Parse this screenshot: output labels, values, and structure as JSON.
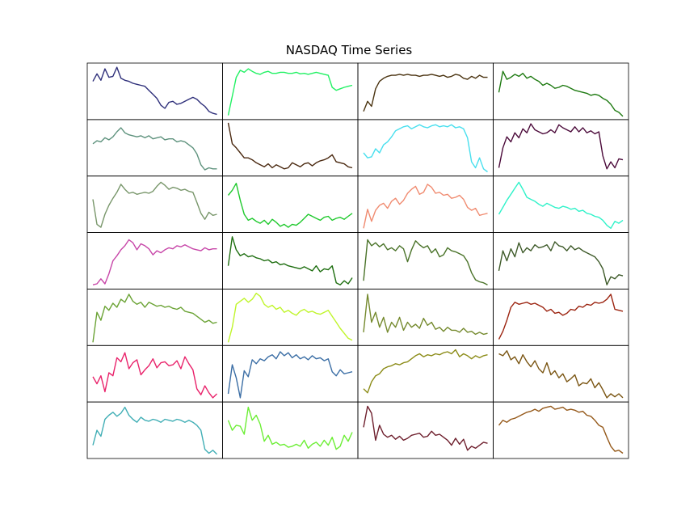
{
  "figure": {
    "title": "NASDAQ Time Series"
  },
  "chart_data": {
    "type": "line",
    "layout": "7x4 grid of small multiples, no axes ticks or labels",
    "grid": false,
    "panels": [
      {
        "color": "#2e2f7a",
        "values": [
          0.7,
          0.85,
          0.72,
          0.95,
          0.78,
          0.8,
          0.98,
          0.76,
          0.72,
          0.7,
          0.66,
          0.64,
          0.62,
          0.6,
          0.52,
          0.44,
          0.36,
          0.22,
          0.16,
          0.28,
          0.3,
          0.24,
          0.26,
          0.3,
          0.34,
          0.38,
          0.34,
          0.26,
          0.2,
          0.1,
          0.06,
          0.04
        ]
      },
      {
        "color": "#21f163",
        "values": [
          0.02,
          0.4,
          0.78,
          0.92,
          0.88,
          0.95,
          0.9,
          0.86,
          0.84,
          0.88,
          0.9,
          0.86,
          0.86,
          0.88,
          0.88,
          0.86,
          0.86,
          0.88,
          0.85,
          0.86,
          0.84,
          0.86,
          0.88,
          0.86,
          0.84,
          0.82,
          0.58,
          0.52,
          0.55,
          0.58,
          0.6,
          0.62
        ]
      },
      {
        "color": "#4a3310",
        "values": [
          0.1,
          0.3,
          0.2,
          0.55,
          0.7,
          0.76,
          0.8,
          0.82,
          0.82,
          0.84,
          0.82,
          0.84,
          0.82,
          0.82,
          0.8,
          0.82,
          0.82,
          0.84,
          0.82,
          0.8,
          0.82,
          0.78,
          0.8,
          0.84,
          0.82,
          0.76,
          0.74,
          0.8,
          0.76,
          0.82,
          0.78,
          0.78
        ]
      },
      {
        "color": "#1e7a11",
        "values": [
          0.48,
          0.9,
          0.74,
          0.78,
          0.84,
          0.8,
          0.86,
          0.76,
          0.8,
          0.74,
          0.7,
          0.62,
          0.66,
          0.62,
          0.56,
          0.58,
          0.62,
          0.6,
          0.56,
          0.52,
          0.5,
          0.48,
          0.46,
          0.42,
          0.44,
          0.42,
          0.36,
          0.32,
          0.24,
          0.12,
          0.08,
          0.0
        ]
      },
      {
        "color": "#5e927d",
        "values": [
          0.58,
          0.64,
          0.62,
          0.7,
          0.66,
          0.72,
          0.82,
          0.9,
          0.8,
          0.76,
          0.74,
          0.72,
          0.74,
          0.7,
          0.74,
          0.68,
          0.7,
          0.72,
          0.66,
          0.68,
          0.68,
          0.62,
          0.64,
          0.62,
          0.56,
          0.5,
          0.38,
          0.16,
          0.06,
          0.1,
          0.08,
          0.08
        ]
      },
      {
        "color": "#4a2910",
        "values": [
          1.0,
          0.58,
          0.5,
          0.4,
          0.3,
          0.3,
          0.26,
          0.2,
          0.16,
          0.12,
          0.18,
          0.1,
          0.16,
          0.12,
          0.08,
          0.1,
          0.2,
          0.16,
          0.12,
          0.18,
          0.2,
          0.14,
          0.2,
          0.24,
          0.26,
          0.3,
          0.36,
          0.22,
          0.2,
          0.18,
          0.12,
          0.1
        ]
      },
      {
        "color": "#48dfee",
        "values": [
          0.4,
          0.3,
          0.32,
          0.48,
          0.4,
          0.56,
          0.62,
          0.72,
          0.84,
          0.88,
          0.92,
          0.94,
          0.88,
          0.92,
          0.96,
          0.92,
          0.9,
          0.94,
          0.96,
          0.92,
          0.94,
          0.92,
          0.96,
          0.9,
          0.92,
          0.88,
          0.7,
          0.22,
          0.1,
          0.3,
          0.08,
          0.02
        ]
      },
      {
        "color": "#4b0a3a",
        "values": [
          0.1,
          0.5,
          0.72,
          0.62,
          0.8,
          0.7,
          0.88,
          0.8,
          0.98,
          0.86,
          0.82,
          0.78,
          0.8,
          0.86,
          0.8,
          0.96,
          0.9,
          0.86,
          0.82,
          0.92,
          0.82,
          0.9,
          0.8,
          0.84,
          0.78,
          0.82,
          0.34,
          0.08,
          0.22,
          0.1,
          0.28,
          0.26
        ]
      },
      {
        "color": "#78966a",
        "values": [
          0.6,
          0.1,
          0.04,
          0.3,
          0.48,
          0.62,
          0.74,
          0.9,
          0.8,
          0.72,
          0.74,
          0.7,
          0.72,
          0.74,
          0.72,
          0.76,
          0.86,
          0.94,
          0.88,
          0.8,
          0.84,
          0.82,
          0.78,
          0.8,
          0.76,
          0.74,
          0.54,
          0.32,
          0.2,
          0.34,
          0.28,
          0.3
        ]
      },
      {
        "color": "#1fc92d",
        "values": [
          0.68,
          0.78,
          0.92,
          0.58,
          0.3,
          0.18,
          0.22,
          0.16,
          0.12,
          0.18,
          0.1,
          0.2,
          0.14,
          0.06,
          0.1,
          0.04,
          0.1,
          0.08,
          0.14,
          0.22,
          0.3,
          0.26,
          0.22,
          0.18,
          0.24,
          0.26,
          0.18,
          0.22,
          0.24,
          0.2,
          0.26,
          0.32
        ]
      },
      {
        "color": "#f08b70",
        "values": [
          0.02,
          0.4,
          0.16,
          0.38,
          0.48,
          0.52,
          0.42,
          0.56,
          0.62,
          0.5,
          0.58,
          0.72,
          0.8,
          0.86,
          0.7,
          0.74,
          0.9,
          0.84,
          0.72,
          0.74,
          0.68,
          0.7,
          0.62,
          0.64,
          0.68,
          0.6,
          0.44,
          0.38,
          0.42,
          0.28,
          0.3,
          0.32
        ]
      },
      {
        "color": "#2ff2c9",
        "values": [
          0.3,
          0.44,
          0.58,
          0.7,
          0.82,
          0.94,
          0.8,
          0.64,
          0.6,
          0.56,
          0.5,
          0.46,
          0.52,
          0.48,
          0.44,
          0.42,
          0.46,
          0.44,
          0.4,
          0.42,
          0.36,
          0.38,
          0.32,
          0.3,
          0.26,
          0.24,
          0.18,
          0.08,
          0.02,
          0.16,
          0.12,
          0.18
        ]
      },
      {
        "color": "#c746a8",
        "values": [
          0.02,
          0.04,
          0.14,
          0.04,
          0.24,
          0.5,
          0.6,
          0.72,
          0.8,
          0.92,
          0.86,
          0.72,
          0.84,
          0.8,
          0.74,
          0.62,
          0.7,
          0.66,
          0.72,
          0.76,
          0.74,
          0.8,
          0.78,
          0.82,
          0.78,
          0.74,
          0.72,
          0.7,
          0.76,
          0.72,
          0.74,
          0.74
        ]
      },
      {
        "color": "#1e6e10",
        "values": [
          0.4,
          0.98,
          0.72,
          0.6,
          0.64,
          0.58,
          0.6,
          0.56,
          0.54,
          0.5,
          0.52,
          0.46,
          0.48,
          0.42,
          0.44,
          0.4,
          0.38,
          0.36,
          0.34,
          0.38,
          0.34,
          0.3,
          0.4,
          0.28,
          0.34,
          0.32,
          0.4,
          0.06,
          0.02,
          0.1,
          0.04,
          0.16
        ]
      },
      {
        "color": "#4a7329",
        "values": [
          0.1,
          0.92,
          0.8,
          0.86,
          0.78,
          0.84,
          0.72,
          0.76,
          0.7,
          0.8,
          0.74,
          0.48,
          0.72,
          0.9,
          0.82,
          0.76,
          0.8,
          0.66,
          0.74,
          0.58,
          0.62,
          0.76,
          0.7,
          0.68,
          0.64,
          0.6,
          0.48,
          0.26,
          0.12,
          0.08,
          0.06,
          0.02
        ]
      },
      {
        "color": "#3e5a29",
        "values": [
          0.3,
          0.7,
          0.5,
          0.74,
          0.58,
          0.86,
          0.66,
          0.76,
          0.7,
          0.82,
          0.76,
          0.78,
          0.82,
          0.7,
          0.88,
          0.8,
          0.78,
          0.7,
          0.8,
          0.72,
          0.76,
          0.7,
          0.66,
          0.62,
          0.58,
          0.48,
          0.34,
          0.02,
          0.18,
          0.14,
          0.22,
          0.2
        ]
      },
      {
        "color": "#6ba335",
        "values": [
          0.0,
          0.6,
          0.44,
          0.72,
          0.64,
          0.78,
          0.7,
          0.86,
          0.8,
          0.96,
          0.82,
          0.76,
          0.8,
          0.7,
          0.8,
          0.76,
          0.72,
          0.74,
          0.7,
          0.72,
          0.68,
          0.66,
          0.7,
          0.62,
          0.6,
          0.58,
          0.52,
          0.46,
          0.4,
          0.44,
          0.38,
          0.4
        ]
      },
      {
        "color": "#c0f52b",
        "values": [
          0.0,
          0.3,
          0.76,
          0.82,
          0.88,
          0.8,
          0.86,
          0.98,
          0.92,
          0.76,
          0.7,
          0.74,
          0.66,
          0.7,
          0.6,
          0.64,
          0.58,
          0.54,
          0.62,
          0.66,
          0.6,
          0.62,
          0.58,
          0.56,
          0.6,
          0.64,
          0.52,
          0.4,
          0.28,
          0.18,
          0.08,
          0.04
        ]
      },
      {
        "color": "#758a2e",
        "values": [
          0.2,
          0.96,
          0.4,
          0.6,
          0.3,
          0.5,
          0.2,
          0.4,
          0.3,
          0.5,
          0.24,
          0.4,
          0.3,
          0.36,
          0.28,
          0.48,
          0.34,
          0.4,
          0.26,
          0.3,
          0.22,
          0.3,
          0.24,
          0.24,
          0.2,
          0.28,
          0.2,
          0.22,
          0.16,
          0.2,
          0.16,
          0.18
        ]
      },
      {
        "color": "#9b230f",
        "values": [
          0.06,
          0.22,
          0.44,
          0.7,
          0.8,
          0.76,
          0.78,
          0.8,
          0.76,
          0.78,
          0.74,
          0.7,
          0.62,
          0.66,
          0.58,
          0.6,
          0.54,
          0.58,
          0.66,
          0.64,
          0.72,
          0.7,
          0.76,
          0.74,
          0.8,
          0.78,
          0.8,
          0.86,
          0.96,
          0.66,
          0.64,
          0.62
        ]
      },
      {
        "color": "#e9236b",
        "values": [
          0.44,
          0.3,
          0.46,
          0.14,
          0.52,
          0.46,
          0.82,
          0.74,
          0.92,
          0.6,
          0.72,
          0.78,
          0.48,
          0.58,
          0.66,
          0.8,
          0.62,
          0.72,
          0.74,
          0.66,
          0.68,
          0.76,
          0.6,
          0.84,
          0.7,
          0.58,
          0.2,
          0.08,
          0.26,
          0.12,
          0.02,
          0.1
        ]
      },
      {
        "color": "#3b6ea5",
        "values": [
          0.1,
          0.68,
          0.42,
          0.02,
          0.56,
          0.44,
          0.78,
          0.7,
          0.8,
          0.76,
          0.84,
          0.88,
          0.8,
          0.94,
          0.86,
          0.92,
          0.82,
          0.88,
          0.8,
          0.84,
          0.78,
          0.86,
          0.8,
          0.82,
          0.76,
          0.8,
          0.54,
          0.46,
          0.58,
          0.5,
          0.52,
          0.54
        ]
      },
      {
        "color": "#8c8c18",
        "values": [
          0.2,
          0.12,
          0.34,
          0.46,
          0.5,
          0.6,
          0.64,
          0.66,
          0.7,
          0.68,
          0.72,
          0.74,
          0.8,
          0.86,
          0.9,
          0.84,
          0.88,
          0.86,
          0.9,
          0.88,
          0.92,
          0.94,
          0.9,
          0.98,
          0.84,
          0.9,
          0.86,
          0.8,
          0.86,
          0.82,
          0.86,
          0.88
        ]
      },
      {
        "color": "#7a5512",
        "values": [
          0.9,
          0.86,
          0.96,
          0.78,
          0.84,
          0.7,
          0.88,
          0.74,
          0.64,
          0.76,
          0.6,
          0.52,
          0.72,
          0.48,
          0.56,
          0.42,
          0.5,
          0.34,
          0.4,
          0.48,
          0.26,
          0.32,
          0.3,
          0.4,
          0.22,
          0.32,
          0.18,
          0.02,
          0.1,
          0.04,
          0.1,
          0.02
        ]
      },
      {
        "color": "#40aeb5",
        "values": [
          0.2,
          0.5,
          0.38,
          0.72,
          0.8,
          0.86,
          0.78,
          0.84,
          0.96,
          0.8,
          0.72,
          0.66,
          0.76,
          0.7,
          0.68,
          0.72,
          0.7,
          0.66,
          0.72,
          0.7,
          0.68,
          0.72,
          0.7,
          0.66,
          0.7,
          0.66,
          0.6,
          0.5,
          0.12,
          0.04,
          0.1,
          0.02
        ]
      },
      {
        "color": "#6cee35",
        "values": [
          0.7,
          0.5,
          0.6,
          0.58,
          0.42,
          0.96,
          0.7,
          0.8,
          0.62,
          0.28,
          0.4,
          0.22,
          0.26,
          0.2,
          0.22,
          0.16,
          0.18,
          0.22,
          0.18,
          0.3,
          0.14,
          0.22,
          0.26,
          0.18,
          0.3,
          0.2,
          0.36,
          0.12,
          0.18,
          0.4,
          0.28,
          0.46
        ]
      },
      {
        "color": "#6e1f2d",
        "values": [
          0.56,
          0.98,
          0.84,
          0.3,
          0.6,
          0.42,
          0.36,
          0.4,
          0.32,
          0.38,
          0.3,
          0.34,
          0.4,
          0.42,
          0.44,
          0.36,
          0.38,
          0.48,
          0.4,
          0.42,
          0.36,
          0.3,
          0.2,
          0.34,
          0.22,
          0.32,
          0.1,
          0.18,
          0.14,
          0.2,
          0.26,
          0.24
        ]
      },
      {
        "color": "#95591a",
        "values": [
          0.6,
          0.7,
          0.66,
          0.72,
          0.74,
          0.78,
          0.82,
          0.86,
          0.88,
          0.92,
          0.88,
          0.94,
          0.96,
          0.98,
          0.92,
          0.94,
          0.96,
          0.9,
          0.92,
          0.9,
          0.86,
          0.88,
          0.8,
          0.78,
          0.7,
          0.6,
          0.56,
          0.36,
          0.18,
          0.08,
          0.1,
          0.04
        ]
      }
    ]
  }
}
